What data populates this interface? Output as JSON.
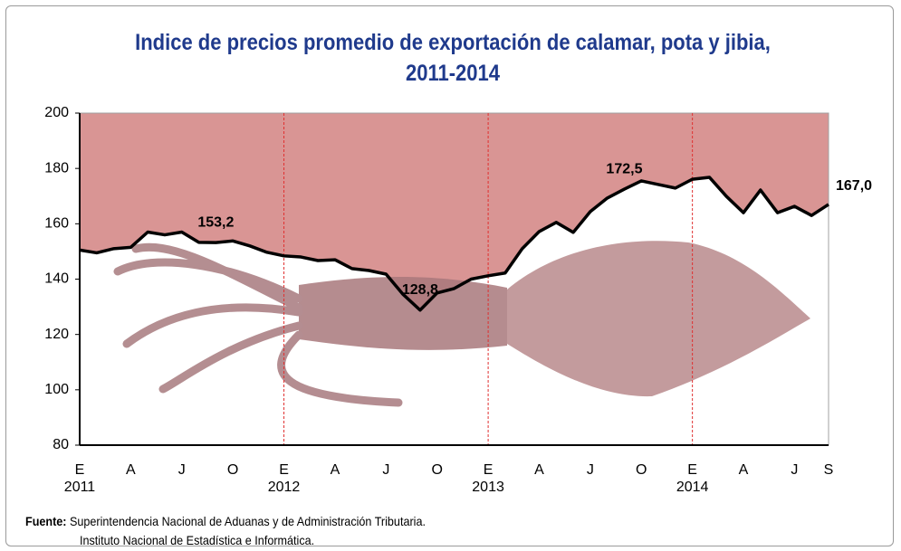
{
  "chart_data": {
    "type": "line",
    "title": "Indice de precios promedio de exportación de calamar, pota y jibia, 2011-2014",
    "categories": [
      [
        "E",
        "2011"
      ],
      null,
      null,
      [
        "A"
      ],
      null,
      null,
      [
        "J"
      ],
      null,
      null,
      [
        "O"
      ],
      null,
      null,
      [
        "E",
        "2012"
      ],
      null,
      null,
      [
        "A"
      ],
      null,
      null,
      [
        "J"
      ],
      null,
      null,
      [
        "O"
      ],
      null,
      null,
      [
        "E",
        "2013"
      ],
      null,
      null,
      [
        "A"
      ],
      null,
      null,
      [
        "J"
      ],
      null,
      null,
      [
        "O"
      ],
      null,
      null,
      [
        "E",
        "2014"
      ],
      null,
      null,
      [
        "A"
      ],
      null,
      null,
      [
        "J"
      ],
      null,
      [
        "S"
      ]
    ],
    "values": [
      150.5,
      149.5,
      151,
      151.5,
      157,
      156,
      157,
      153.3,
      153.2,
      153.8,
      152,
      149.7,
      148.4,
      148,
      146.7,
      147,
      143.8,
      143.1,
      141.8,
      134.5,
      128.8,
      135,
      136.6,
      140,
      141.2,
      142.2,
      151,
      157.2,
      160.5,
      156.9,
      164.4,
      169.3,
      172.5,
      175.5,
      174.2,
      172.9,
      176.1,
      176.8,
      169.9,
      164,
      172.2,
      164,
      166.3,
      163,
      167.0
    ],
    "value_labels": [
      null,
      null,
      null,
      null,
      null,
      null,
      null,
      null,
      "153,2",
      null,
      null,
      null,
      null,
      null,
      null,
      null,
      null,
      null,
      null,
      null,
      "128,8",
      null,
      null,
      null,
      null,
      null,
      null,
      null,
      null,
      null,
      null,
      null,
      "172,5",
      null,
      null,
      null,
      null,
      null,
      null,
      null,
      null,
      null,
      null,
      null,
      "167,0"
    ],
    "color": "#000000",
    "fill_above": "#d99594",
    "ylim": [
      80,
      200
    ],
    "yticks": [
      80,
      100,
      120,
      140,
      160,
      180,
      200
    ],
    "source_label": "Fuente:",
    "source_lines": [
      "Superintendencia Nacional de Aduanas y de Administración Tributaria.",
      "Instituto  Nacional de Estadística e Informática."
    ]
  }
}
